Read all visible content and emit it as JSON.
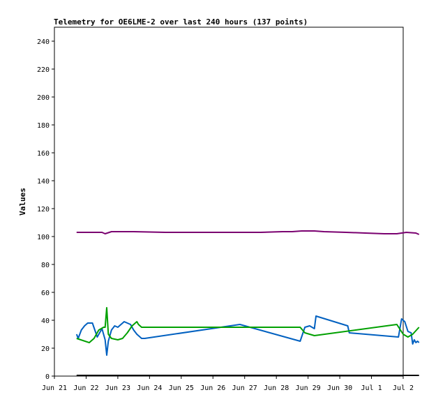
{
  "chart_data": {
    "type": "line",
    "title": "Telemetry for OE6LME-2 over last 240 hours (137 points)",
    "xlabel": "",
    "ylabel": "Values",
    "xlim": [
      "Jun 21",
      "Jul 2"
    ],
    "ylim": [
      0,
      250
    ],
    "x_ticks": [
      "Jun 21",
      "Jun 22",
      "Jun 23",
      "Jun 24",
      "Jun 25",
      "Jun 26",
      "Jun 27",
      "Jun 28",
      "Jun 29",
      "Jun 30",
      "Jul 1",
      "Jul 2"
    ],
    "y_ticks": [
      0,
      20,
      40,
      60,
      80,
      100,
      120,
      140,
      160,
      180,
      200,
      220,
      240
    ],
    "grid": false,
    "legend": "none",
    "x_units": "days since Jun 21",
    "series": [
      {
        "color": "#7a0070",
        "x": [
          0.7,
          1.2,
          1.5,
          1.6,
          1.8,
          2.5,
          3.5,
          4.5,
          5.5,
          6.5,
          7.2,
          7.5,
          7.8,
          8.2,
          8.5,
          9.2,
          9.8,
          10.4,
          10.8,
          11.1,
          11.4,
          11.5
        ],
        "y": [
          103,
          103,
          103,
          102,
          103.5,
          103.5,
          103,
          103,
          103,
          103,
          103.5,
          103.5,
          104,
          104,
          103.5,
          103,
          102.5,
          102,
          102,
          103,
          102.5,
          101.5
        ]
      },
      {
        "color": "#0060c0",
        "x": [
          0.7,
          0.75,
          0.85,
          0.95,
          1.05,
          1.2,
          1.35,
          1.5,
          1.6,
          1.65,
          1.7,
          1.8,
          1.9,
          2.0,
          2.2,
          2.4,
          2.5,
          2.6,
          2.75,
          2.85,
          5.85,
          7.75,
          7.9,
          8.05,
          8.2,
          8.25,
          9.25,
          9.3,
          10.85,
          10.95,
          11.05,
          11.15,
          11.25,
          11.3,
          11.35,
          11.4,
          11.45,
          11.5
        ],
        "y": [
          30,
          27,
          33,
          36,
          38,
          38,
          28,
          34,
          26,
          15,
          25,
          33,
          36,
          35,
          39,
          37,
          33,
          30,
          27,
          27,
          37,
          25,
          35,
          36,
          34,
          43,
          36,
          31,
          28,
          41,
          39,
          32,
          31,
          23,
          26,
          24,
          25,
          24
        ]
      },
      {
        "color": "#00a000",
        "x": [
          0.7,
          1.1,
          1.25,
          1.4,
          1.55,
          1.6,
          1.65,
          1.7,
          1.8,
          2.0,
          2.15,
          2.3,
          2.45,
          2.55,
          2.6,
          2.65,
          2.75,
          7.75,
          7.9,
          8.2,
          10.8,
          11.0,
          11.15,
          11.3,
          11.5
        ],
        "y": [
          27,
          24,
          27,
          33,
          35,
          35,
          49,
          30,
          27,
          26,
          27,
          31,
          36,
          38,
          39,
          37,
          35,
          35,
          31,
          29,
          37,
          30,
          28,
          30,
          35
        ]
      },
      {
        "color": "#000000",
        "x": [
          0.7,
          11.5
        ],
        "y": [
          0.5,
          0.5
        ]
      }
    ]
  }
}
